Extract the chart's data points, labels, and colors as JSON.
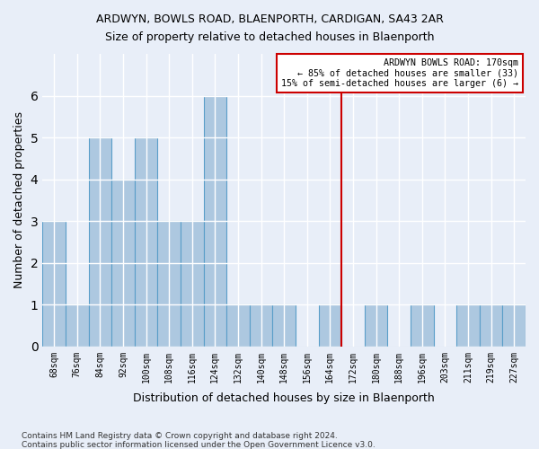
{
  "title1": "ARDWYN, BOWLS ROAD, BLAENPORTH, CARDIGAN, SA43 2AR",
  "title2": "Size of property relative to detached houses in Blaenporth",
  "xlabel": "Distribution of detached houses by size in Blaenporth",
  "ylabel": "Number of detached properties",
  "categories": [
    "68sqm",
    "76sqm",
    "84sqm",
    "92sqm",
    "100sqm",
    "108sqm",
    "116sqm",
    "124sqm",
    "132sqm",
    "140sqm",
    "148sqm",
    "156sqm",
    "164sqm",
    "172sqm",
    "180sqm",
    "188sqm",
    "196sqm",
    "203sqm",
    "211sqm",
    "219sqm",
    "227sqm"
  ],
  "values": [
    3,
    1,
    5,
    4,
    5,
    3,
    3,
    6,
    1,
    1,
    1,
    0,
    1,
    0,
    1,
    0,
    1,
    0,
    1,
    1,
    1
  ],
  "bar_color": "#adc8e0",
  "bar_edge_color": "#5a9ec9",
  "background_color": "#e8eef8",
  "grid_color": "#ffffff",
  "red_line_index": 13,
  "red_line_color": "#cc0000",
  "annotation_text": "ARDWYN BOWLS ROAD: 170sqm\n← 85% of detached houses are smaller (33)\n15% of semi-detached houses are larger (6) →",
  "annotation_box_color": "#cc0000",
  "ylim": [
    0,
    7
  ],
  "yticks": [
    0,
    1,
    2,
    3,
    4,
    5,
    6,
    7
  ],
  "footnote1": "Contains HM Land Registry data © Crown copyright and database right 2024.",
  "footnote2": "Contains public sector information licensed under the Open Government Licence v3.0."
}
